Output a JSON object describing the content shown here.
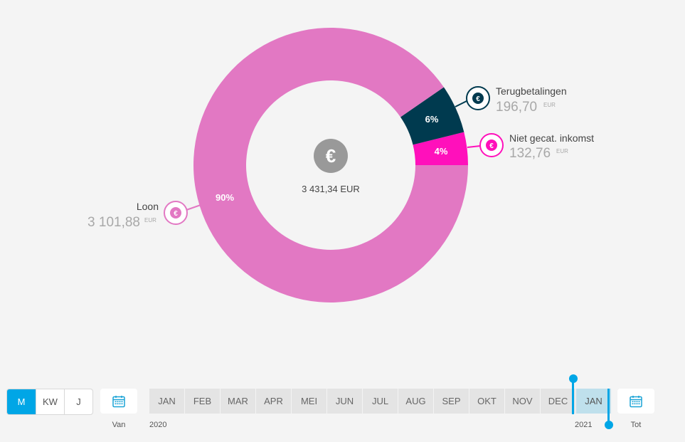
{
  "chart_data": {
    "type": "pie",
    "donut": true,
    "total_label": "3 431,34 EUR",
    "center_icon": "euro-icon",
    "slices": [
      {
        "name": "Loon",
        "value": 3101.88,
        "amount_label": "3 101,88",
        "unit": "EUR",
        "percent_label": "90%",
        "color": "#e278c3"
      },
      {
        "name": "Terugbetalingen",
        "value": 196.7,
        "amount_label": "196,70",
        "unit": "EUR",
        "percent_label": "6%",
        "color": "#003a4f"
      },
      {
        "name": "Niet gecat. inkomst",
        "value": 132.76,
        "amount_label": "132,76",
        "unit": "EUR",
        "percent_label": "4%",
        "color": "#ff10bb"
      }
    ]
  },
  "period_toggle": {
    "options": [
      "M",
      "KW",
      "J"
    ],
    "active": "M",
    "accent": "#00a6e6"
  },
  "date_range": {
    "from_label": "Van",
    "to_label": "Tot",
    "calendar_icon": "calendar-icon"
  },
  "timeline": {
    "months": [
      "JAN",
      "FEB",
      "MAR",
      "APR",
      "MEI",
      "JUN",
      "JUL",
      "AUG",
      "SEP",
      "OKT",
      "NOV",
      "DEC",
      "JAN"
    ],
    "years": [
      "2020",
      "2021"
    ],
    "selected_index": 12
  }
}
